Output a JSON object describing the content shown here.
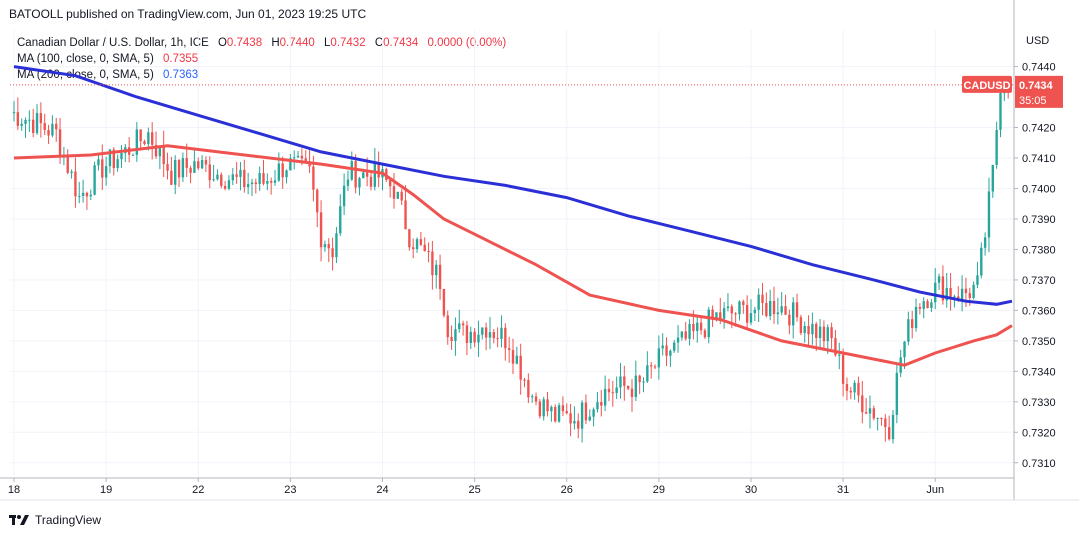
{
  "header": {
    "publisher": "BATOOLL published on TradingView.com, Jun 01, 2023 19:25 UTC"
  },
  "legend": {
    "symbol": "Canadian Dollar / U.S. Dollar, 1h, ICE",
    "o_label": "O",
    "o_value": "0.7438",
    "h_label": "H",
    "h_value": "0.7440",
    "l_label": "L",
    "l_value": "0.7432",
    "c_label": "C",
    "c_value": "0.7434",
    "change": "0.0000 (0.00%)",
    "ma100_label": "MA (100, close, 0, SMA, 5)",
    "ma100_value": "0.7355",
    "ma200_label": "MA (200, close, 0, SMA, 5)",
    "ma200_value": "0.7363"
  },
  "footer": {
    "brand": "TradingView"
  },
  "colors": {
    "up": "#26a69a",
    "down": "#ef5350",
    "ma100": "#ef5350",
    "ma200": "#2b2fd6",
    "grid": "#f0f3fa"
  },
  "chart_data": {
    "type": "candlestick",
    "currency": "USD",
    "ylim": [
      0.7305,
      0.7452
    ],
    "yticks": [
      "0.7310",
      "0.7320",
      "0.7330",
      "0.7340",
      "0.7350",
      "0.7360",
      "0.7370",
      "0.7380",
      "0.7390",
      "0.7400",
      "0.7410",
      "0.7420",
      "0.7440"
    ],
    "xticks": [
      {
        "label": "18",
        "idx": 0
      },
      {
        "label": "19",
        "idx": 24
      },
      {
        "label": "22",
        "idx": 48
      },
      {
        "label": "23",
        "idx": 72
      },
      {
        "label": "24",
        "idx": 96
      },
      {
        "label": "25",
        "idx": 120
      },
      {
        "label": "26",
        "idx": 144
      },
      {
        "label": "29",
        "idx": 168
      },
      {
        "label": "30",
        "idx": 192
      },
      {
        "label": "31",
        "idx": 216
      },
      {
        "label": "Jun",
        "idx": 240
      }
    ],
    "last_price": {
      "symbol": "CADUSD",
      "value": "0.7434",
      "countdown": "35:05"
    },
    "candle_count": 260,
    "anchors": [
      [
        0,
        0.7425
      ],
      [
        6,
        0.7422
      ],
      [
        12,
        0.7418
      ],
      [
        18,
        0.7397
      ],
      [
        24,
        0.7407
      ],
      [
        30,
        0.7412
      ],
      [
        36,
        0.7418
      ],
      [
        42,
        0.7405
      ],
      [
        48,
        0.7408
      ],
      [
        54,
        0.7405
      ],
      [
        60,
        0.7402
      ],
      [
        66,
        0.7402
      ],
      [
        72,
        0.7408
      ],
      [
        78,
        0.7405
      ],
      [
        81,
        0.7385
      ],
      [
        84,
        0.738
      ],
      [
        88,
        0.7405
      ],
      [
        96,
        0.7404
      ],
      [
        100,
        0.74
      ],
      [
        104,
        0.7385
      ],
      [
        108,
        0.7378
      ],
      [
        112,
        0.737
      ],
      [
        114,
        0.7355
      ],
      [
        118,
        0.7352
      ],
      [
        124,
        0.7355
      ],
      [
        130,
        0.735
      ],
      [
        136,
        0.7332
      ],
      [
        142,
        0.7325
      ],
      [
        148,
        0.7325
      ],
      [
        154,
        0.7333
      ],
      [
        160,
        0.7335
      ],
      [
        164,
        0.7335
      ],
      [
        170,
        0.7345
      ],
      [
        178,
        0.7352
      ],
      [
        184,
        0.7358
      ],
      [
        192,
        0.736
      ],
      [
        200,
        0.7362
      ],
      [
        208,
        0.7355
      ],
      [
        214,
        0.735
      ],
      [
        218,
        0.7335
      ],
      [
        224,
        0.7328
      ],
      [
        229,
        0.7322
      ],
      [
        232,
        0.7345
      ],
      [
        236,
        0.7362
      ],
      [
        242,
        0.7368
      ],
      [
        248,
        0.7365
      ],
      [
        252,
        0.7368
      ],
      [
        254,
        0.7385
      ],
      [
        256,
        0.7405
      ],
      [
        258,
        0.7435
      ],
      [
        260,
        0.7436
      ]
    ],
    "ma100_points": [
      [
        0,
        0.741
      ],
      [
        20,
        0.7411
      ],
      [
        40,
        0.7414
      ],
      [
        60,
        0.7411
      ],
      [
        80,
        0.7408
      ],
      [
        96,
        0.7405
      ],
      [
        104,
        0.7398
      ],
      [
        112,
        0.739
      ],
      [
        120,
        0.7385
      ],
      [
        136,
        0.7375
      ],
      [
        150,
        0.7365
      ],
      [
        168,
        0.736
      ],
      [
        184,
        0.7357
      ],
      [
        200,
        0.735
      ],
      [
        216,
        0.7346
      ],
      [
        232,
        0.7342
      ],
      [
        240,
        0.7346
      ],
      [
        250,
        0.735
      ],
      [
        256,
        0.7352
      ],
      [
        260,
        0.7355
      ]
    ],
    "ma200_points": [
      [
        0,
        0.744
      ],
      [
        16,
        0.7437
      ],
      [
        32,
        0.743
      ],
      [
        48,
        0.7424
      ],
      [
        64,
        0.7418
      ],
      [
        80,
        0.7412
      ],
      [
        96,
        0.7408
      ],
      [
        112,
        0.7404
      ],
      [
        128,
        0.7401
      ],
      [
        144,
        0.7397
      ],
      [
        160,
        0.7391
      ],
      [
        176,
        0.7386
      ],
      [
        192,
        0.7381
      ],
      [
        208,
        0.7375
      ],
      [
        224,
        0.737
      ],
      [
        236,
        0.7366
      ],
      [
        248,
        0.7363
      ],
      [
        256,
        0.7362
      ],
      [
        260,
        0.7363
      ]
    ]
  }
}
